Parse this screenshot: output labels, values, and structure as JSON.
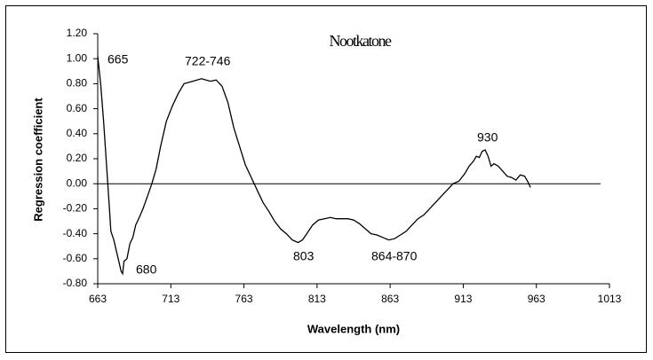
{
  "chart_data": {
    "type": "line",
    "title": "Nootkatone",
    "x_label": "Wavelength  (nm)",
    "y_label": "Regression coefficient",
    "xlim": [
      663,
      1013
    ],
    "xticks": [
      663,
      713,
      763,
      813,
      863,
      913,
      963,
      1013
    ],
    "ylim": [
      -0.8,
      1.2
    ],
    "yticks": [
      {
        "value": -0.8,
        "label": "-0.80"
      },
      {
        "value": -0.6,
        "label": "-0.60"
      },
      {
        "value": -0.4,
        "label": "-0.40"
      },
      {
        "value": -0.2,
        "label": "-0.20"
      },
      {
        "value": 0,
        "label": "0.00"
      },
      {
        "value": 0.2,
        "label": "0.20"
      },
      {
        "value": 0.4,
        "label": "0.40"
      },
      {
        "value": 0.6,
        "label": "0.60"
      },
      {
        "value": 0.8,
        "label": "0.80"
      },
      {
        "value": 1.0,
        "label": "1.00"
      },
      {
        "value": 1.2,
        "label": "1.20"
      }
    ],
    "annotations": [
      "665",
      "722-746",
      "680",
      "803",
      "864-870",
      "930"
    ],
    "color": "#000000",
    "x": [
      663,
      665,
      667,
      669,
      671,
      672,
      674,
      676,
      678,
      679,
      680,
      681,
      683,
      685,
      687,
      689,
      691,
      694,
      697,
      700,
      703,
      706,
      710,
      714,
      718,
      722,
      728,
      734,
      740,
      744,
      748,
      752,
      756,
      760,
      764,
      768,
      772,
      776,
      780,
      784,
      788,
      792,
      796,
      800,
      803,
      806,
      810,
      814,
      818,
      822,
      826,
      830,
      834,
      838,
      842,
      846,
      850,
      854,
      858,
      862,
      866,
      870,
      874,
      878,
      882,
      886,
      890,
      894,
      898,
      902,
      906,
      910,
      914,
      917,
      920,
      922,
      924,
      926,
      928,
      930,
      932,
      934,
      937,
      940,
      943,
      946,
      949,
      952,
      955,
      957,
      959
    ],
    "values": [
      1.02,
      0.8,
      0.5,
      0.15,
      -0.2,
      -0.38,
      -0.45,
      -0.55,
      -0.65,
      -0.7,
      -0.72,
      -0.62,
      -0.6,
      -0.48,
      -0.43,
      -0.33,
      -0.28,
      -0.2,
      -0.1,
      0.0,
      0.12,
      0.3,
      0.5,
      0.62,
      0.72,
      0.8,
      0.82,
      0.84,
      0.82,
      0.83,
      0.78,
      0.65,
      0.45,
      0.3,
      0.15,
      0.05,
      -0.05,
      -0.15,
      -0.22,
      -0.3,
      -0.36,
      -0.4,
      -0.45,
      -0.47,
      -0.45,
      -0.4,
      -0.33,
      -0.29,
      -0.28,
      -0.27,
      -0.28,
      -0.28,
      -0.28,
      -0.29,
      -0.32,
      -0.36,
      -0.4,
      -0.41,
      -0.43,
      -0.45,
      -0.44,
      -0.41,
      -0.38,
      -0.33,
      -0.28,
      -0.25,
      -0.2,
      -0.15,
      -0.1,
      -0.05,
      0.0,
      0.02,
      0.08,
      0.14,
      0.18,
      0.22,
      0.21,
      0.26,
      0.27,
      0.22,
      0.14,
      0.16,
      0.14,
      0.1,
      0.06,
      0.05,
      0.03,
      0.07,
      0.06,
      0.02,
      -0.03
    ]
  }
}
